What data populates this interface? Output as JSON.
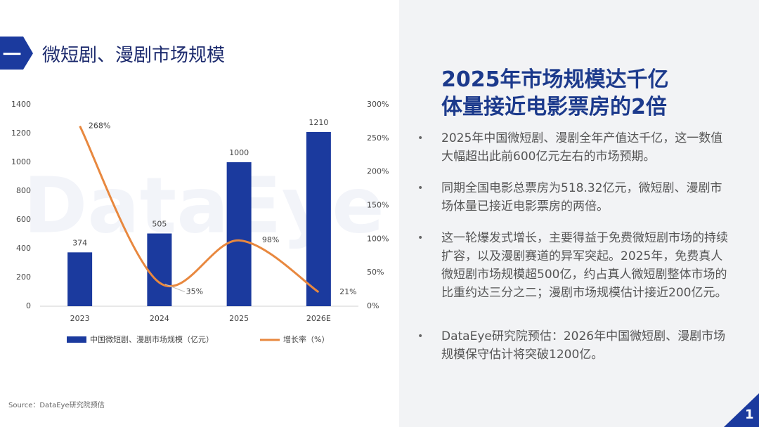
{
  "header": {
    "number": "一",
    "title": "微短剧、漫剧市场规模"
  },
  "chart_data": {
    "type": "combo",
    "categories": [
      "2023",
      "2024",
      "2025",
      "2026E"
    ],
    "series": [
      {
        "name": "中国微短剧、漫剧市场规模（亿元）",
        "type": "bar",
        "color": "#1b3a9e",
        "values": [
          374,
          505,
          1000,
          1210
        ]
      },
      {
        "name": "增长率（%）",
        "type": "line",
        "axis": "y2",
        "color": "#e8883f",
        "values": [
          268,
          35,
          98,
          21
        ],
        "value_labels": [
          "268%",
          "35%",
          "98%",
          "21%"
        ]
      }
    ],
    "ylim": [
      0,
      1400
    ],
    "yticks": [
      0,
      200,
      400,
      600,
      800,
      1000,
      1200,
      1400
    ],
    "y2lim": [
      0,
      300
    ],
    "y2ticks": [
      {
        "value": 0,
        "label": "0%"
      },
      {
        "value": 50,
        "label": "50%"
      },
      {
        "value": 100,
        "label": "100%"
      },
      {
        "value": 150,
        "label": "150%"
      },
      {
        "value": 200,
        "label": "200%"
      },
      {
        "value": 250,
        "label": "250%"
      },
      {
        "value": 300,
        "label": "300%"
      }
    ],
    "grid": false,
    "legend": "bottom",
    "watermark": "DataEye"
  },
  "source": "Source：DataEye研究院预估",
  "panel": {
    "headline": [
      "2025年市场规模达千亿",
      "体量接近电影票房的2倍"
    ],
    "bullets": [
      "2025年中国微短剧、漫剧全年产值达千亿，这一数值大幅超出此前600亿元左右的市场预期。",
      "同期全国电影总票房为518.32亿元，微短剧、漫剧市场体量已接近电影票房的两倍。",
      "这一轮爆发式增长，主要得益于免费微短剧市场的持续扩容，以及漫剧赛道的异军突起。2025年，免费真人微短剧市场规模超500亿，约占真人微短剧整体市场的比重约达三分之二；漫剧市场规模估计接近200亿元。",
      "DataEye研究院预估：2026年中国微短剧、漫剧市场规模保守估计将突破1200亿。"
    ]
  },
  "page_number": "1"
}
